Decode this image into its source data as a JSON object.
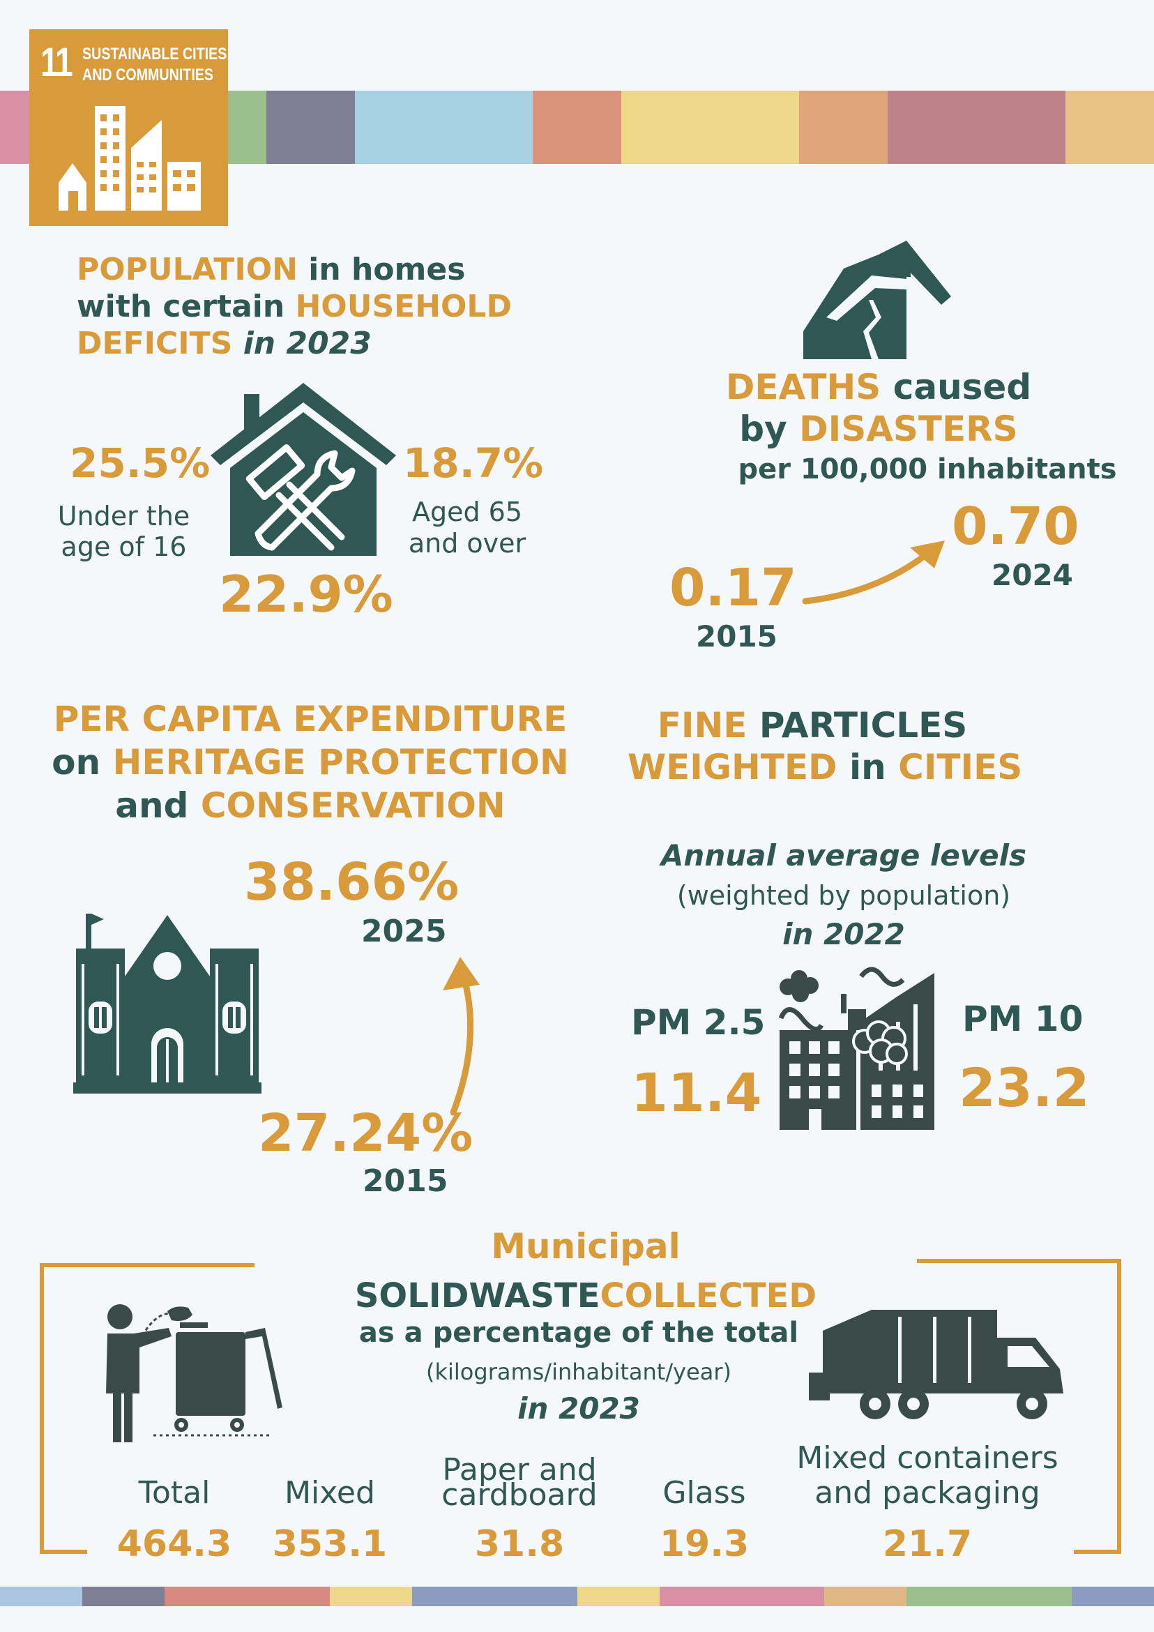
{
  "colors": {
    "accent": "#d99a3a",
    "dark": "#2f5753",
    "icon": "#2f5753",
    "background": "#f5f8fb",
    "top_stripe": [
      "#d98fa6",
      "#d99a3a",
      "#9bbf8d",
      "#7e7f95",
      "#a8d1e6",
      "#a8d1e6",
      "#d9937a",
      "#efd78a",
      "#efd78a",
      "#e0a47a",
      "#c0828a",
      "#c0828a",
      "#e8c285"
    ],
    "bottom_stripe": [
      "#a8c6e0",
      "#7e7f95",
      "#d98a80",
      "#d98a80",
      "#efd78a",
      "#8a9cc0",
      "#8a9cc0",
      "#efd78a",
      "#d98fa6",
      "#d98fa6",
      "#e0b885",
      "#9bbf8d",
      "#9bbf8d",
      "#8a9cc0"
    ]
  },
  "sdg_badge": {
    "number": "11",
    "title_line1": "SUSTAINABLE CITIES",
    "title_line2": "AND COMMUNITIES",
    "icon": "city-buildings-icon"
  },
  "population": {
    "title_a": "POPULATION",
    "title_b": " in homes",
    "title_c": "with certain ",
    "title_d": "HOUSEHOLD",
    "title_e": "DEFICITS",
    "title_f": " in 2023",
    "left_value": "25.5%",
    "left_label1": "Under the",
    "left_label2": "age of 16",
    "right_value": "18.7%",
    "right_label1": "Aged 65",
    "right_label2": "and over",
    "total_value": "22.9%",
    "icon": "house-tools-icon"
  },
  "deaths": {
    "title_a": "DEATHS",
    "title_b": " caused",
    "title_c": "by ",
    "title_d": "DISASTERS",
    "subtitle": "per 100,000 inhabitants",
    "value_2015": "0.17",
    "year_2015": "2015",
    "value_2024": "0.70",
    "year_2024": "2024",
    "icon": "collapsed-house-icon"
  },
  "heritage": {
    "title_a": "PER CAPITA EXPENDITURE",
    "title_b": "on ",
    "title_c": "HERITAGE PROTECTION",
    "title_d": "and ",
    "title_e": "CONSERVATION",
    "value_2025": "38.66%",
    "year_2025": "2025",
    "value_2015": "27.24%",
    "year_2015": "2015",
    "icon": "heritage-building-icon"
  },
  "particles": {
    "title_a": "FINE",
    "title_b": " PARTICLES",
    "title_c": "WEIGHTED",
    "title_d": " in ",
    "title_e": "CITIES",
    "sub1": "Annual average levels",
    "sub2": "(weighted by population)",
    "sub3": "in 2022",
    "pm25_label": "PM 2.5",
    "pm25_value": "11.4",
    "pm10_label": "PM 10",
    "pm10_value": "23.2",
    "icon": "polluting-factory-icon"
  },
  "waste": {
    "title_a": "Municipal",
    "title_b": "SOLIDWASTE",
    "title_c": "COLLECTED",
    "title_d": "as a percentage of the total",
    "title_e": "(kilograms/inhabitant/year)",
    "title_f": "in 2023",
    "categories": [
      {
        "label1": "Total",
        "label2": "",
        "value": "464.3"
      },
      {
        "label1": "Mixed",
        "label2": "",
        "value": "353.1"
      },
      {
        "label1": "Paper and",
        "label2": "cardboard",
        "value": "31.8"
      },
      {
        "label1": "Glass",
        "label2": "",
        "value": "19.3"
      },
      {
        "label1": "Mixed containers",
        "label2": "and packaging",
        "value": "21.7"
      }
    ],
    "icons": [
      "person-disposing-waste-icon",
      "garbage-truck-icon"
    ]
  }
}
